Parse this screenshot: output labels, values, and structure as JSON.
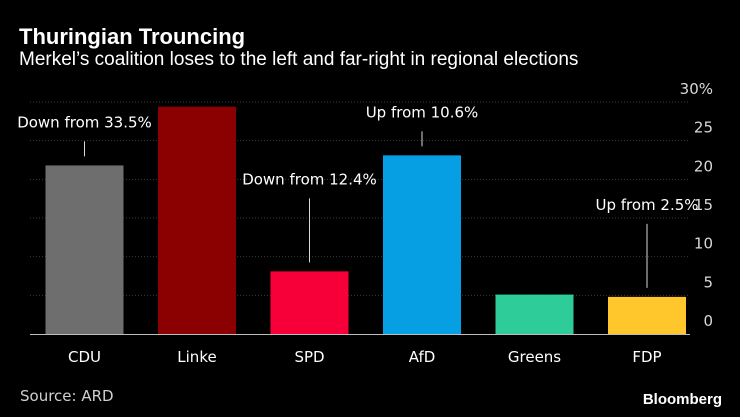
{
  "header": {
    "title": "Thuringian Trouncing",
    "subtitle": "Merkel’s coalition loses to the left and far-right in regional elections"
  },
  "footer": {
    "source": "Source: ARD",
    "brand": "Bloomberg"
  },
  "chart_data": {
    "type": "bar",
    "title": "Thuringian Trouncing",
    "subtitle": "Merkel’s coalition loses to the left and far-right in regional elections",
    "categories": [
      "CDU",
      "Linke",
      "SPD",
      "AfD",
      "Greens",
      "FDP"
    ],
    "values": [
      21.8,
      29.4,
      8.1,
      23.1,
      5.1,
      4.8
    ],
    "colors": [
      "#6e6e6e",
      "#8b0000",
      "#f7003a",
      "#069fe3",
      "#2ecc98",
      "#ffc72c"
    ],
    "annotations": [
      {
        "category": "CDU",
        "text": "Down from 33.5%"
      },
      {
        "category": "SPD",
        "text": "Down from 12.4%"
      },
      {
        "category": "AfD",
        "text": "Up from 10.6%"
      },
      {
        "category": "FDP",
        "text": "Up from 2.5%"
      }
    ],
    "yticks": [
      "0",
      "5",
      "10",
      "15",
      "20",
      "25",
      "30%"
    ],
    "ylim": [
      0,
      30
    ],
    "axis_position": "right",
    "grid": true
  }
}
